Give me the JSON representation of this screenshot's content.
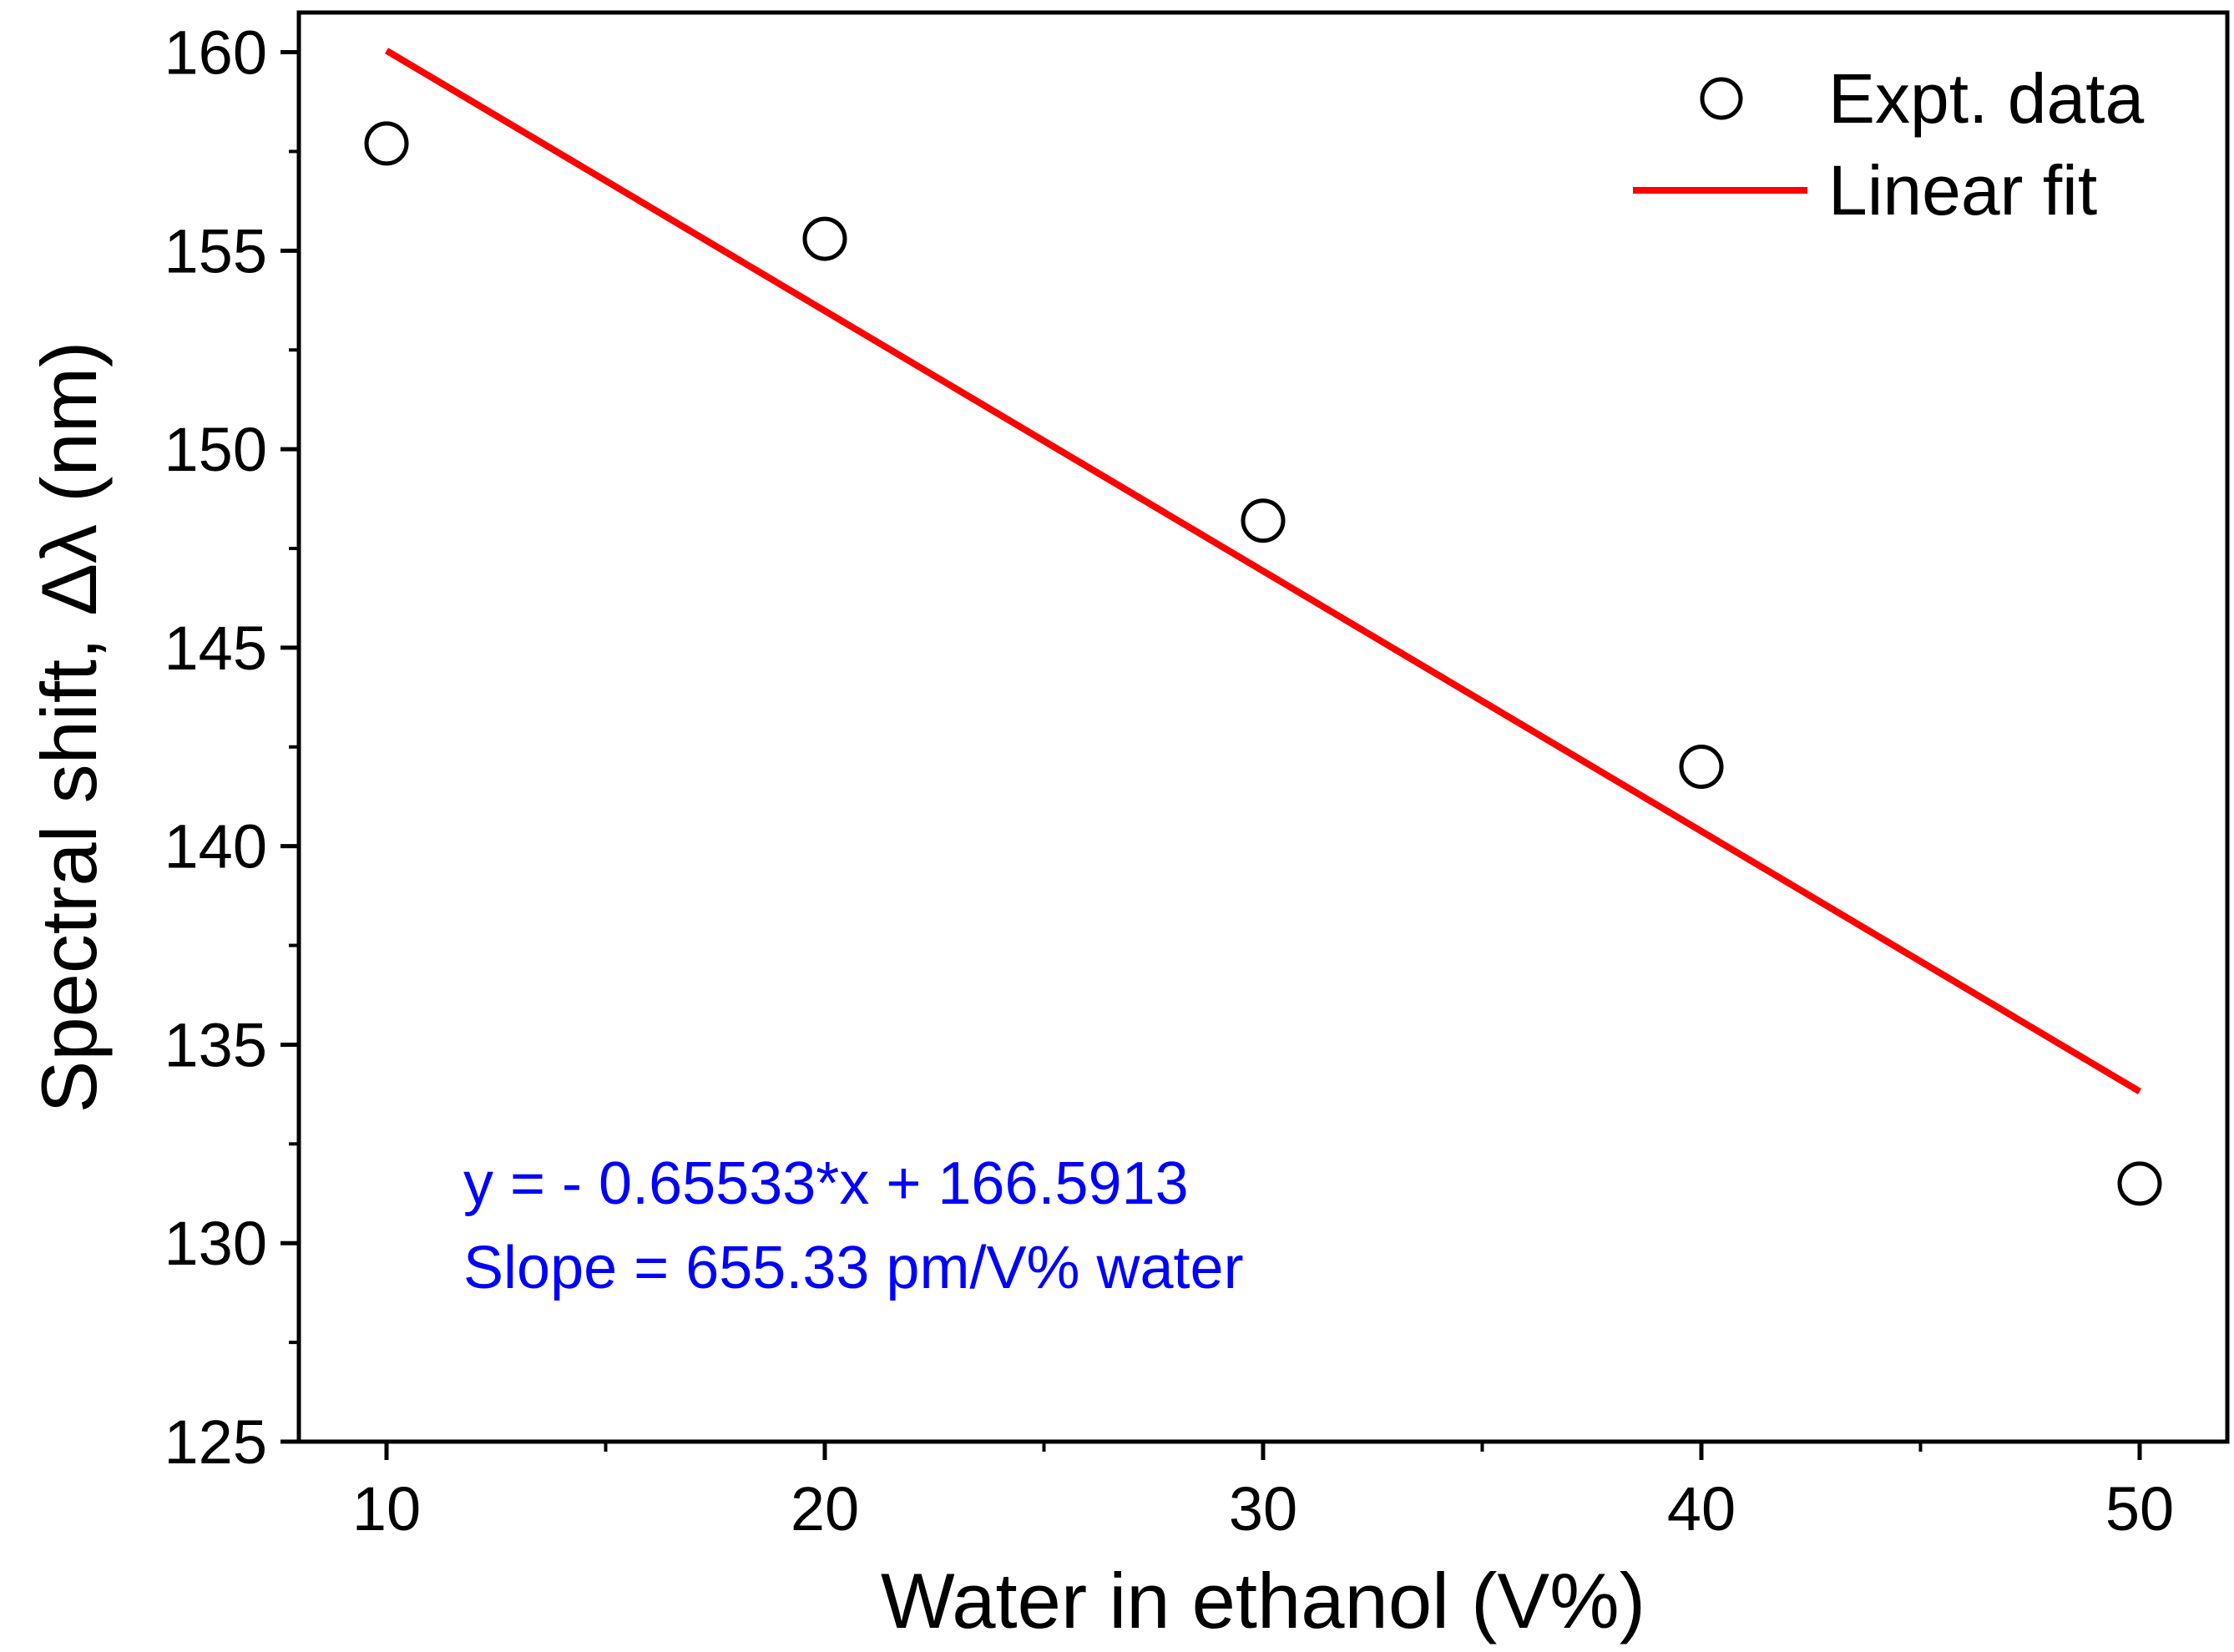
{
  "chart_data": {
    "type": "scatter",
    "title": "",
    "xlabel": "Water in ethanol (V%)",
    "ylabel": "Spectral shift, Δλ (nm)",
    "xlim": [
      8,
      52
    ],
    "ylim": [
      125,
      161
    ],
    "xticks": [
      10,
      20,
      30,
      40,
      50
    ],
    "yticks": [
      125,
      130,
      135,
      140,
      145,
      150,
      155,
      160
    ],
    "grid": false,
    "legend_position": "top-right",
    "series": [
      {
        "name": "Expt. data",
        "kind": "scatter",
        "marker": "open-circle",
        "color": "#000000",
        "x": [
          10,
          20,
          30,
          40,
          50
        ],
        "y": [
          157.7,
          155.3,
          148.2,
          142.0,
          131.5
        ]
      },
      {
        "name": "Linear fit",
        "kind": "line",
        "color": "#ff0000",
        "x": [
          10,
          50
        ],
        "y": [
          160.04,
          133.82
        ]
      }
    ],
    "annotations": [
      "y = - 0.65533*x + 166.5913",
      "Slope = 655.33 pm/V% water"
    ],
    "annotation_color": "#0000ff"
  }
}
